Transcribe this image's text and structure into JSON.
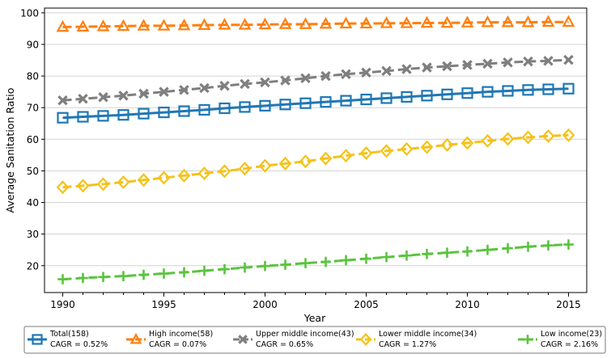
{
  "chart_data": {
    "type": "line",
    "xlabel": "Year",
    "ylabel": "Average Sanitation Ratio",
    "xlim": [
      1989.1,
      1990,
      2015.9
    ],
    "ylim": [
      11.5,
      101.5
    ],
    "x_ticks": [
      "1990",
      "1995",
      "2000",
      "2005",
      "2010",
      "2015"
    ],
    "y_ticks": [
      "20",
      "30",
      "40",
      "50",
      "60",
      "70",
      "80",
      "90",
      "100"
    ],
    "grid": "horizontal",
    "legend_position": "bottom",
    "x": [
      1990,
      1991,
      1992,
      1993,
      1994,
      1995,
      1996,
      1997,
      1998,
      1999,
      2000,
      2001,
      2002,
      2003,
      2004,
      2005,
      2006,
      2007,
      2008,
      2009,
      2010,
      2011,
      2012,
      2013,
      2014,
      2015
    ],
    "series": [
      {
        "name": "Total(158)",
        "cagr": "CAGR = 0.52%",
        "color": "#1f77b4",
        "marker": "square",
        "line": "solid",
        "values": [
          66.8,
          67.1,
          67.4,
          67.7,
          68.1,
          68.5,
          68.9,
          69.3,
          69.8,
          70.2,
          70.6,
          71.0,
          71.4,
          71.8,
          72.2,
          72.6,
          73.0,
          73.4,
          73.8,
          74.2,
          74.6,
          75.0,
          75.3,
          75.6,
          75.8,
          76.0
        ]
      },
      {
        "name": "High income(58)",
        "cagr": "CAGR = 0.07%",
        "color": "#ff7f0e",
        "marker": "triangle",
        "line": "dashed",
        "values": [
          95.5,
          95.6,
          95.7,
          95.8,
          95.9,
          95.9,
          96.0,
          96.1,
          96.2,
          96.2,
          96.3,
          96.4,
          96.4,
          96.5,
          96.6,
          96.6,
          96.7,
          96.7,
          96.8,
          96.8,
          96.9,
          97.0,
          97.0,
          97.0,
          97.1,
          97.1
        ]
      },
      {
        "name": "Upper middle income(43)",
        "cagr": "CAGR = 0.65%",
        "color": "#7f7f7f",
        "marker": "x",
        "line": "dashed",
        "values": [
          72.3,
          72.8,
          73.3,
          73.8,
          74.4,
          75.0,
          75.6,
          76.2,
          76.9,
          77.5,
          78.0,
          78.6,
          79.3,
          80.0,
          80.6,
          81.1,
          81.6,
          82.2,
          82.7,
          83.1,
          83.5,
          83.9,
          84.3,
          84.6,
          84.8,
          85.1
        ]
      },
      {
        "name": "Lower middle income(34)",
        "cagr": "CAGR = 1.27%",
        "color": "#f5c218",
        "marker": "diamond",
        "line": "dashed",
        "values": [
          44.8,
          45.3,
          45.8,
          46.4,
          47.1,
          47.8,
          48.5,
          49.2,
          49.9,
          50.7,
          51.6,
          52.3,
          53.0,
          53.9,
          54.8,
          55.6,
          56.3,
          56.9,
          57.5,
          58.2,
          58.8,
          59.5,
          60.1,
          60.6,
          61.0,
          61.3
        ]
      },
      {
        "name": "Low income(23)",
        "cagr": "CAGR = 2.16%",
        "color": "#5ac43e",
        "marker": "plus",
        "line": "dashed",
        "values": [
          15.7,
          16.1,
          16.4,
          16.7,
          17.1,
          17.5,
          17.9,
          18.4,
          18.9,
          19.4,
          19.9,
          20.3,
          20.8,
          21.2,
          21.7,
          22.2,
          22.7,
          23.2,
          23.7,
          24.1,
          24.5,
          25.0,
          25.5,
          26.0,
          26.4,
          26.7
        ]
      }
    ]
  }
}
